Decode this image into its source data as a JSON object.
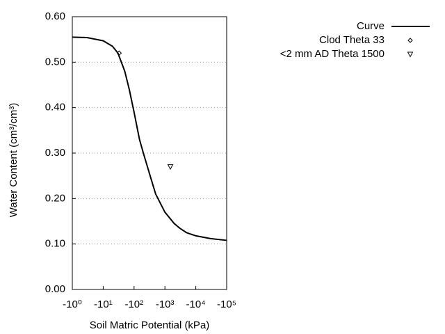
{
  "chart_data": {
    "type": "line",
    "x_label": "Soil Matric Potential (kPa)",
    "y_label": "Water Content (cm³/cm³)",
    "xscale": "log",
    "xlim": [
      1,
      100000
    ],
    "xticks": [
      {
        "value": 1,
        "label": "-10⁰"
      },
      {
        "value": 10,
        "label": "-10¹"
      },
      {
        "value": 100,
        "label": "-10²"
      },
      {
        "value": 1000,
        "label": "-10³"
      },
      {
        "value": 10000,
        "label": "-10⁴"
      },
      {
        "value": 100000,
        "label": "-10⁵"
      }
    ],
    "ylim": [
      0,
      0.6
    ],
    "yticks": [
      {
        "value": 0,
        "label": "0.00"
      },
      {
        "value": 0.1,
        "label": "0.10"
      },
      {
        "value": 0.2,
        "label": "0.20"
      },
      {
        "value": 0.3,
        "label": "0.30"
      },
      {
        "value": 0.4,
        "label": "0.40"
      },
      {
        "value": 0.5,
        "label": "0.50"
      },
      {
        "value": 0.6,
        "label": "0.60"
      }
    ],
    "grid": true,
    "series": [
      {
        "name": "Curve",
        "color": "#000000",
        "marker": "none",
        "x": [
          1,
          3,
          10,
          20,
          30,
          50,
          70,
          100,
          150,
          200,
          300,
          500,
          1000,
          2000,
          3000,
          5000,
          10000,
          30000,
          100000
        ],
        "values": [
          0.555,
          0.554,
          0.547,
          0.535,
          0.52,
          0.48,
          0.44,
          0.39,
          0.33,
          0.3,
          0.26,
          0.21,
          0.17,
          0.145,
          0.135,
          0.125,
          0.118,
          0.112,
          0.108
        ]
      },
      {
        "name": "Clod Theta 33",
        "color": "#000000",
        "marker": "diamond",
        "x": [
          33
        ],
        "values": [
          0.52
        ]
      },
      {
        "name": "<2 mm AD Theta 1500",
        "color": "#000000",
        "marker": "triangle",
        "x": [
          1500
        ],
        "values": [
          0.27
        ]
      }
    ]
  }
}
